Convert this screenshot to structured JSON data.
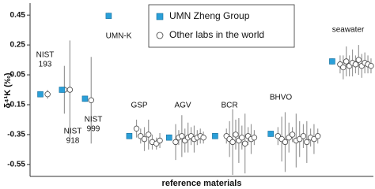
{
  "chart_data": {
    "type": "scatter",
    "y_label": "δ⁴¹K (‰)",
    "x_label": "reference materials",
    "ylim": [
      -0.63,
      0.53
    ],
    "yticks": [
      0.45,
      0.25,
      0.05,
      -0.15,
      -0.35,
      -0.55
    ],
    "xlim": [
      0,
      100
    ],
    "legend": "upper center",
    "series": [
      {
        "name": "UMN Zheng Group",
        "color": "#2a9fd8",
        "marker": "square",
        "x": [
          3.0,
          9.3,
          16.0,
          22.9,
          28.9,
          40.5,
          53.9,
          70.1,
          88.0
        ],
        "values": [
          -0.08,
          -0.05,
          -0.11,
          0.445,
          -0.36,
          -0.37,
          -0.36,
          -0.345,
          0.14
        ],
        "errors": [
          0.02,
          0.02,
          0.02,
          0.02,
          0.02,
          0.02,
          0.02,
          0.02,
          0.02
        ]
      },
      {
        "name": "Other labs in the world",
        "color": "#ffffff",
        "marker": "circle",
        "x": [
          5.1,
          10.0,
          11.6,
          17.8,
          31.0,
          32.2,
          33.3,
          34.5,
          35.6,
          36.8,
          37.8,
          42.4,
          43.3,
          44.2,
          45.1,
          46.0,
          46.9,
          47.8,
          48.7,
          49.6,
          50.5,
          57.2,
          58.1,
          59.0,
          59.9,
          60.8,
          61.7,
          62.6,
          63.5,
          64.4,
          65.3,
          72.2,
          73.3,
          74.3,
          75.4,
          76.4,
          77.5,
          78.5,
          79.6,
          80.6,
          81.7,
          82.7,
          83.8,
          90.3,
          91.2,
          92.1,
          93.0,
          93.9,
          94.8,
          95.7,
          96.6,
          97.5,
          98.4,
          99.3
        ],
        "values": [
          -0.08,
          -0.05,
          -0.05,
          -0.12,
          -0.31,
          -0.36,
          -0.38,
          -0.35,
          -0.4,
          -0.41,
          -0.39,
          -0.4,
          -0.37,
          -0.36,
          -0.39,
          -0.37,
          -0.36,
          -0.38,
          -0.37,
          -0.36,
          -0.37,
          -0.36,
          -0.38,
          -0.4,
          -0.35,
          -0.39,
          -0.37,
          -0.41,
          -0.36,
          -0.38,
          -0.37,
          -0.36,
          -0.38,
          -0.4,
          -0.37,
          -0.35,
          -0.39,
          -0.38,
          -0.36,
          -0.4,
          -0.37,
          -0.38,
          -0.36,
          0.12,
          0.1,
          0.14,
          0.11,
          0.13,
          0.12,
          0.15,
          0.11,
          0.13,
          0.12,
          0.11
        ],
        "errors": [
          0.03,
          0.16,
          0.33,
          0.29,
          0.06,
          0.05,
          0.08,
          0.1,
          0.05,
          0.04,
          0.05,
          0.12,
          0.05,
          0.14,
          0.08,
          0.1,
          0.06,
          0.09,
          0.05,
          0.05,
          0.04,
          0.05,
          0.12,
          0.22,
          0.1,
          0.15,
          0.08,
          0.2,
          0.06,
          0.1,
          0.05,
          0.06,
          0.15,
          0.2,
          0.1,
          0.05,
          0.18,
          0.12,
          0.08,
          0.14,
          0.06,
          0.1,
          0.05,
          0.06,
          0.08,
          0.1,
          0.07,
          0.09,
          0.06,
          0.1,
          0.08,
          0.07,
          0.06,
          0.05
        ]
      }
    ],
    "annotations": [
      {
        "lines": [
          "NIST",
          "193"
        ]
      },
      {
        "lines": [
          "NIST",
          "918"
        ]
      },
      {
        "lines": [
          "NIST",
          "999"
        ]
      },
      {
        "lines": [
          "UMN-K"
        ]
      },
      {
        "lines": [
          "GSP"
        ]
      },
      {
        "lines": [
          "AGV"
        ]
      },
      {
        "lines": [
          "BCR"
        ]
      },
      {
        "lines": [
          "BHVO"
        ]
      },
      {
        "lines": [
          "seawater"
        ]
      }
    ]
  }
}
